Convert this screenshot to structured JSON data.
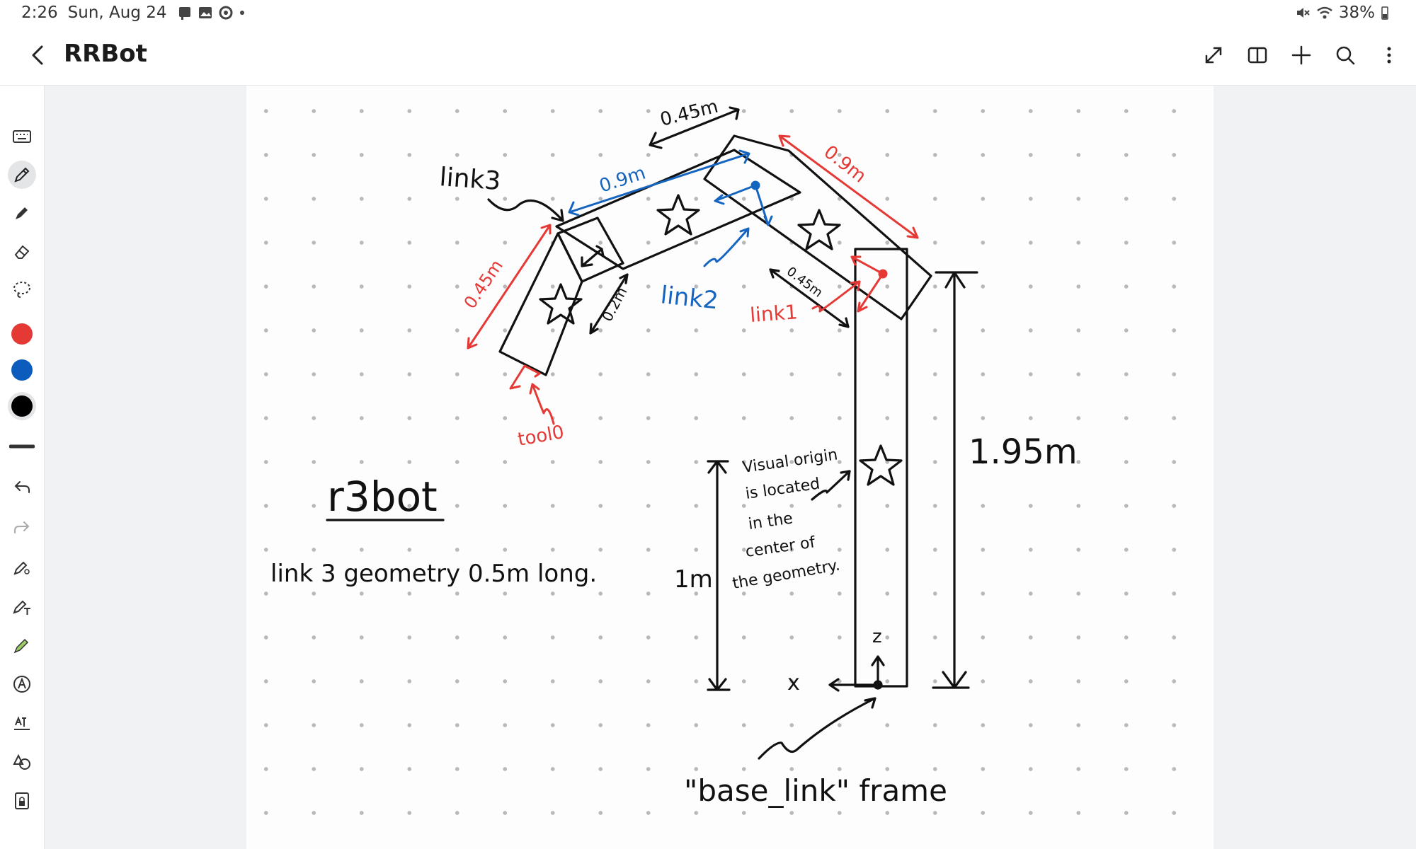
{
  "status_bar": {
    "time": "2:26",
    "date": "Sun, Aug 24",
    "battery": "38%",
    "icons": [
      "notes-icon",
      "gallery-icon",
      "sync-icon",
      "dot-icon",
      "mute-icon",
      "wifi-icon",
      "battery-icon"
    ]
  },
  "header": {
    "title": "RRBot",
    "actions": [
      "expand-icon",
      "book-view-icon",
      "add-icon",
      "search-icon",
      "more-icon"
    ]
  },
  "toolbar": {
    "tools": [
      "keyboard-icon",
      "pen-icon",
      "highlighter-icon",
      "eraser-icon",
      "lasso-icon"
    ],
    "colors": [
      "#e53935",
      "#0b5cbc",
      "#000000"
    ],
    "lower_tools": [
      "undo-icon",
      "redo-icon",
      "shape-pen-icon",
      "text-pen-icon",
      "marker-icon",
      "handwriting-icon",
      "text-recognition-icon",
      "shapes-icon",
      "page-lock-icon"
    ]
  },
  "colors": {
    "red": "#e53935",
    "blue": "#1565c0",
    "ink": "#111111"
  },
  "note": {
    "dim_045_top": "0.45m",
    "dim_09_blue": "0.9m",
    "dim_09_red": "0.9m",
    "dim_045_left": "0.45m",
    "dim_02": "0.2m",
    "dim_045_small": "0.45m",
    "label_link3": "link3",
    "label_link2": "link2",
    "label_link1": "link1",
    "label_tool0": "tool0",
    "robot_name": "r3bot",
    "geometry_note": "link 3 geometry 0.5m long.",
    "dim_1m": "1m",
    "dim_195": "1.95m",
    "visual_origin_lines": [
      "Visual origin",
      "is located",
      "in the",
      "center of",
      "the geometry."
    ],
    "axis_z": "z",
    "axis_x": "x",
    "frame_label": "\"base_link\" frame"
  }
}
